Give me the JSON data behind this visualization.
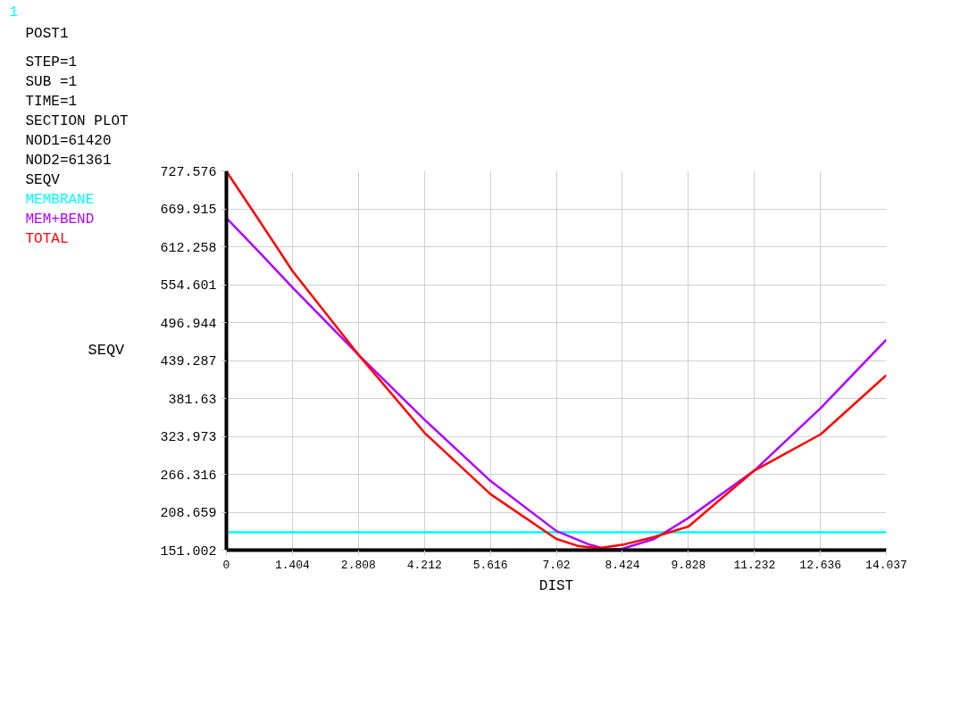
{
  "chart_data": {
    "type": "line",
    "title": "POST1",
    "annotations": [
      "1",
      "STEP=1",
      "SUB =1",
      "TIME=1",
      "SECTION PLOT",
      "NOD1=61420",
      "NOD2=61361",
      "SEQV"
    ],
    "xlabel": "DIST",
    "ylabel": "SEQV",
    "series": [
      {
        "name": "MEMBRANE",
        "color": "#00ffff",
        "x": [
          0,
          14.037
        ],
        "values": [
          178,
          178
        ]
      },
      {
        "name": "MEM+BEND",
        "color": "#b000ff",
        "x": [
          0,
          0.7,
          1.41,
          2.81,
          4.22,
          5.62,
          7.02,
          7.7,
          8.1,
          8.42,
          9.1,
          9.83,
          11.23,
          12.64,
          14.037
        ],
        "values": [
          656,
          604,
          550,
          448,
          349,
          256,
          180,
          160,
          152,
          153,
          168,
          200,
          272,
          367,
          471
        ]
      },
      {
        "name": "TOTAL",
        "color": "#ff0000",
        "x": [
          0,
          0.7,
          1.41,
          2.81,
          4.22,
          5.62,
          7.02,
          7.5,
          7.93,
          8.42,
          9.1,
          9.83,
          11.23,
          12.64,
          14.037
        ],
        "values": [
          727,
          652,
          575,
          448,
          329,
          236,
          168,
          157,
          154,
          159,
          171,
          187,
          272,
          327,
          417
        ]
      }
    ],
    "xlim": [
      0,
      14.037
    ],
    "ylim": [
      151.002,
      727.576
    ],
    "xticks": [
      0,
      1.404,
      2.808,
      4.212,
      5.616,
      7.02,
      8.424,
      9.828,
      11.232,
      12.636,
      14.037
    ],
    "yticks": [
      151.002,
      208.659,
      266.316,
      323.973,
      381.63,
      439.287,
      496.944,
      554.601,
      612.258,
      669.915,
      727.576
    ],
    "grid": true,
    "marker": "none",
    "line_style": "solid"
  }
}
